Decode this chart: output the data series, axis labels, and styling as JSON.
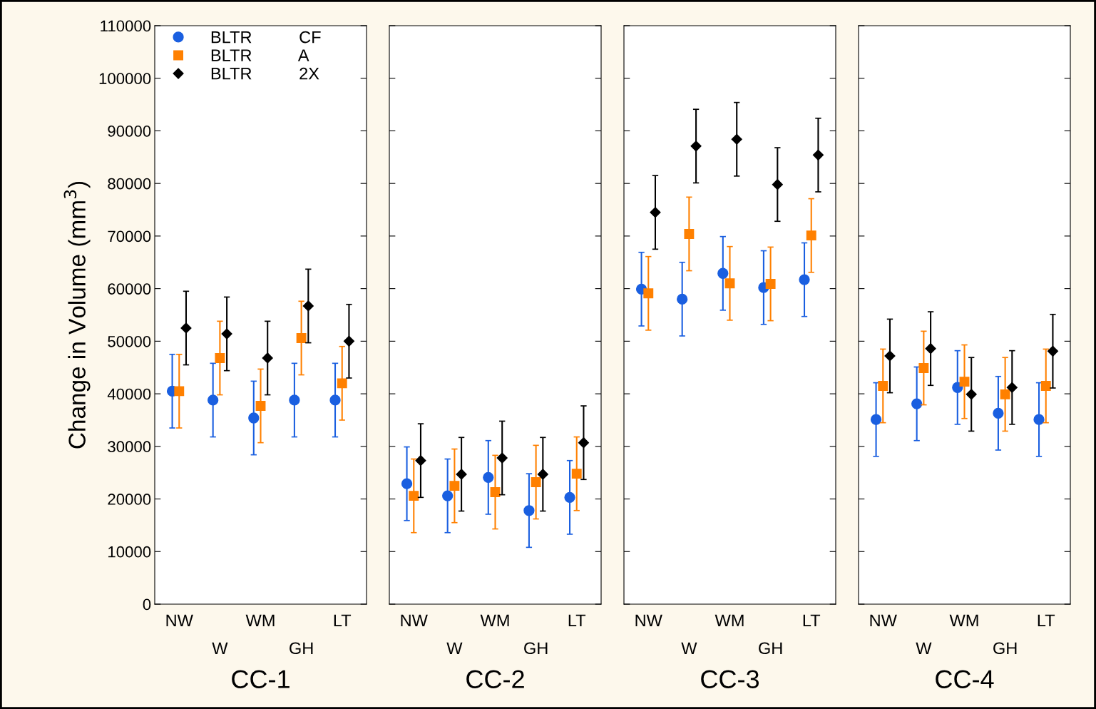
{
  "chart_data": [
    {
      "type": "scatter",
      "xlabel": "CC-1",
      "ylabel": "Change in Volume (mm$^{3}$)",
      "categories": [
        "NW",
        "W",
        "WM",
        "GH",
        "LT"
      ],
      "ylim": [
        0,
        110000
      ],
      "yticks": [
        0,
        10000,
        20000,
        30000,
        40000,
        50000,
        60000,
        70000,
        80000,
        90000,
        100000,
        110000
      ],
      "grid": false,
      "legend": "top left",
      "series": [
        {
          "name": "BLTR          CF",
          "color": "#1a5fe0",
          "marker": "circle",
          "values": [
            40500,
            38800,
            35400,
            38800,
            38800
          ],
          "errors": [
            7000,
            7000,
            7000,
            7000,
            7000
          ]
        },
        {
          "name": "BLTR          A",
          "color": "#ff8000",
          "marker": "square",
          "values": [
            40500,
            46800,
            37700,
            50600,
            42000
          ],
          "errors": [
            7000,
            7000,
            7000,
            7000,
            7000
          ]
        },
        {
          "name": "BLTR          2X",
          "color": "#000000",
          "marker": "diamond",
          "values": [
            52500,
            51400,
            46800,
            56700,
            50000
          ],
          "errors": [
            7000,
            7000,
            7000,
            7000,
            7000
          ]
        }
      ]
    },
    {
      "type": "scatter",
      "xlabel": "CC-2",
      "categories": [
        "NW",
        "W",
        "WM",
        "GH",
        "LT"
      ],
      "ylim": [
        0,
        110000
      ],
      "yticks": [
        0,
        10000,
        20000,
        30000,
        40000,
        50000,
        60000,
        70000,
        80000,
        90000,
        100000,
        110000
      ],
      "grid": false,
      "tick_labels": "x",
      "series": [
        {
          "color": "#1a5fe0",
          "marker": "circle",
          "values": [
            22900,
            20600,
            24100,
            17800,
            20300
          ],
          "errors": [
            7000,
            7000,
            7000,
            7000,
            7000
          ]
        },
        {
          "color": "#ff8000",
          "marker": "square",
          "values": [
            20600,
            22500,
            21300,
            23200,
            24800
          ],
          "errors": [
            7000,
            7000,
            7000,
            7000,
            7000
          ]
        },
        {
          "color": "#000000",
          "marker": "diamond",
          "values": [
            27300,
            24700,
            27800,
            24700,
            30700
          ],
          "errors": [
            7000,
            7000,
            7000,
            7000,
            7000
          ]
        }
      ]
    },
    {
      "type": "scatter",
      "xlabel": "CC-3",
      "categories": [
        "NW",
        "W",
        "WM",
        "GH",
        "LT"
      ],
      "ylim": [
        0,
        110000
      ],
      "yticks": [
        0,
        10000,
        20000,
        30000,
        40000,
        50000,
        60000,
        70000,
        80000,
        90000,
        100000,
        110000
      ],
      "grid": false,
      "tick_labels": "x",
      "series": [
        {
          "color": "#1a5fe0",
          "marker": "circle",
          "values": [
            59900,
            58000,
            62900,
            60200,
            61700
          ],
          "errors": [
            7000,
            7000,
            7000,
            7000,
            7000
          ]
        },
        {
          "color": "#ff8000",
          "marker": "square",
          "values": [
            59100,
            70400,
            61000,
            60900,
            70100
          ],
          "errors": [
            7000,
            7000,
            7000,
            7000,
            7000
          ]
        },
        {
          "color": "#000000",
          "marker": "diamond",
          "values": [
            74500,
            87100,
            88400,
            79800,
            85400
          ],
          "errors": [
            7000,
            7000,
            7000,
            7000,
            7000
          ]
        }
      ]
    },
    {
      "type": "scatter",
      "xlabel": "CC-4",
      "categories": [
        "NW",
        "W",
        "WM",
        "GH",
        "LT"
      ],
      "ylim": [
        0,
        110000
      ],
      "yticks": [
        0,
        10000,
        20000,
        30000,
        40000,
        50000,
        60000,
        70000,
        80000,
        90000,
        100000,
        110000
      ],
      "grid": false,
      "tick_labels": "x",
      "series": [
        {
          "color": "#1a5fe0",
          "marker": "circle",
          "values": [
            35100,
            38100,
            41200,
            36300,
            35100
          ],
          "errors": [
            7000,
            7000,
            7000,
            7000,
            7000
          ]
        },
        {
          "color": "#ff8000",
          "marker": "square",
          "values": [
            41500,
            44900,
            42300,
            39900,
            41500
          ],
          "errors": [
            7000,
            7000,
            7000,
            7000,
            7000
          ]
        },
        {
          "color": "#000000",
          "marker": "diamond",
          "values": [
            47200,
            48600,
            39900,
            41200,
            48100
          ],
          "errors": [
            7000,
            7000,
            7000,
            7000,
            7000
          ]
        }
      ]
    }
  ]
}
